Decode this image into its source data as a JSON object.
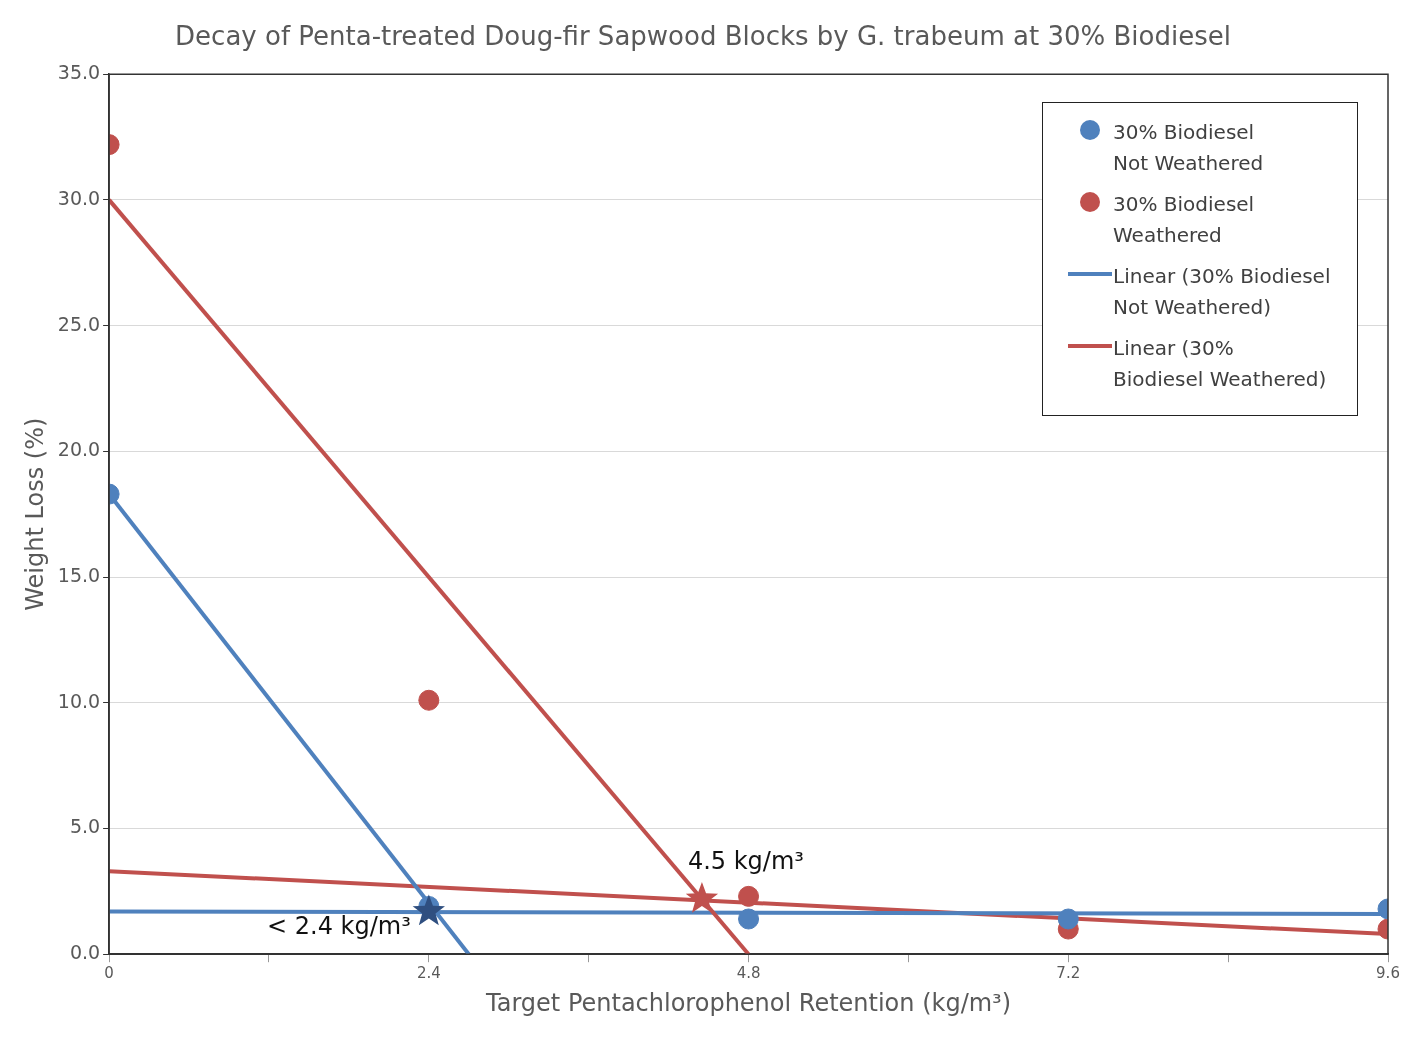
{
  "chart_data": {
    "type": "scatter",
    "title": "Decay of Penta-treated Doug-fir Sapwood Blocks by G. trabeum at 30% Biodiesel",
    "xlabel": "Target Pentachlorophenol Retention (kg/m³)",
    "ylabel": "Weight Loss (%)",
    "xlim": [
      0,
      9.6
    ],
    "xticks": [
      0,
      {
        "value": 1.2,
        "label": null
      },
      2.4,
      {
        "value": 3.6,
        "label": null
      },
      4.8,
      {
        "value": 6.0,
        "label": null
      },
      7.2,
      {
        "value": 8.4,
        "label": null
      },
      9.6
    ],
    "ylim": [
      0,
      35
    ],
    "yticks": [
      {
        "value": 0,
        "label": "0.0"
      },
      {
        "value": 5,
        "label": "5.0"
      },
      {
        "value": 10,
        "label": "10.0"
      },
      {
        "value": 15,
        "label": "15.0"
      },
      {
        "value": 20,
        "label": "20.0"
      },
      {
        "value": 25,
        "label": "25.0"
      },
      {
        "value": 30,
        "label": "30.0"
      },
      {
        "value": 35,
        "label": "35.0"
      }
    ],
    "grid": "y",
    "legend": "top right",
    "marker": "circle",
    "series": [
      {
        "name": "30% Biodiesel Not Weathered",
        "color": "#4f81bd",
        "x": [
          0,
          2.4,
          4.8,
          7.2,
          9.6
        ],
        "values": [
          18.3,
          1.9,
          1.4,
          1.4,
          1.8
        ]
      },
      {
        "name": "30% Biodiesel Weathered",
        "color": "#c0504d",
        "x": [
          0,
          2.4,
          4.8,
          7.2,
          9.6
        ],
        "values": [
          32.2,
          10.1,
          2.3,
          1.0,
          1.0
        ]
      },
      {
        "name": "Linear (30% Biodiesel Not Weathered)",
        "type": "line",
        "marker": "none",
        "color": "#4f81bd",
        "x": [
          0,
          2.7
        ],
        "values": [
          18.3,
          0
        ]
      },
      {
        "name": "Linear (30% Biodiesel Weathered)",
        "type": "line",
        "marker": "none",
        "color": "#c0504d",
        "x": [
          0,
          4.8
        ],
        "values": [
          30.0,
          0
        ]
      },
      {
        "type": "line",
        "marker": "none",
        "color": "#4f81bd",
        "x": [
          0,
          9.6
        ],
        "values": [
          1.7,
          1.6
        ]
      },
      {
        "type": "line",
        "marker": "none",
        "color": "#c0504d",
        "x": [
          0,
          9.6
        ],
        "values": [
          3.3,
          0.8
        ]
      },
      {
        "type": "scatter",
        "marker": "star",
        "color": "#2f4f80",
        "x": [
          2.4
        ],
        "values": [
          1.7
        ]
      },
      {
        "type": "scatter",
        "marker": "star",
        "color": "#c0504d",
        "x": [
          4.45
        ],
        "values": [
          2.2
        ]
      }
    ],
    "annotations": [
      {
        "text": "4.5 kg/m³",
        "x": 4.45,
        "y": 2.2
      },
      {
        "text": "< 2.4 kg/m³",
        "x": 2.4,
        "y": 1.7
      }
    ]
  }
}
